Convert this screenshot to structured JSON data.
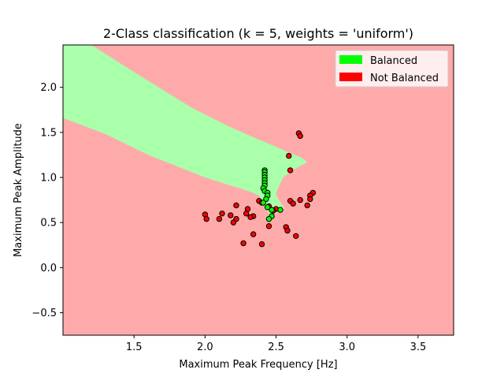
{
  "chart_data": {
    "type": "scatter",
    "title": "2-Class classification (k = 5, weights = 'uniform')",
    "xlabel": "Maximum Peak Frequency [Hz]",
    "ylabel": "Maximum Peak Amplitude",
    "xlim": [
      1.0,
      3.75
    ],
    "ylim": [
      -0.75,
      2.47
    ],
    "xticks": [
      1.5,
      2.0,
      2.5,
      3.0,
      3.5
    ],
    "xtick_labels": [
      "1.5",
      "2.0",
      "2.5",
      "3.0",
      "3.5"
    ],
    "yticks": [
      -0.5,
      0.0,
      0.5,
      1.0,
      1.5,
      2.0
    ],
    "ytick_labels": [
      "−0.5",
      "0.0",
      "0.5",
      "1.0",
      "1.5",
      "2.0"
    ],
    "grid": false,
    "legend_position": "top-right",
    "legend": [
      {
        "label": "Balanced",
        "color": "#00ff00"
      },
      {
        "label": "Not Balanced",
        "color": "#ff0000"
      }
    ],
    "background_regions": {
      "not_balanced_color": "#ffaaaa",
      "balanced_color": "#aaffaa",
      "balanced_polygon": [
        [
          1.0,
          2.47
        ],
        [
          1.2,
          2.47
        ],
        [
          1.5,
          2.17
        ],
        [
          1.9,
          1.78
        ],
        [
          2.15,
          1.58
        ],
        [
          2.35,
          1.44
        ],
        [
          2.5,
          1.34
        ],
        [
          2.6,
          1.27
        ],
        [
          2.68,
          1.22
        ],
        [
          2.72,
          1.17
        ],
        [
          2.66,
          1.12
        ],
        [
          2.6,
          1.06
        ],
        [
          2.55,
          1.0
        ],
        [
          2.52,
          0.9
        ],
        [
          2.5,
          0.82
        ],
        [
          2.52,
          0.75
        ],
        [
          2.56,
          0.66
        ],
        [
          2.5,
          0.6
        ],
        [
          2.45,
          0.6
        ],
        [
          2.42,
          0.7
        ],
        [
          2.38,
          0.8
        ],
        [
          2.32,
          0.84
        ],
        [
          2.2,
          0.9
        ],
        [
          2.0,
          1.0
        ],
        [
          1.6,
          1.25
        ],
        [
          1.3,
          1.48
        ],
        [
          1.0,
          1.66
        ]
      ]
    },
    "series": [
      {
        "name": "Balanced",
        "color": "#00ff00",
        "points": [
          [
            2.42,
            1.08
          ],
          [
            2.42,
            1.06
          ],
          [
            2.42,
            1.03
          ],
          [
            2.42,
            1.0
          ],
          [
            2.42,
            0.97
          ],
          [
            2.42,
            0.94
          ],
          [
            2.42,
            0.91
          ],
          [
            2.41,
            0.88
          ],
          [
            2.42,
            0.85
          ],
          [
            2.44,
            0.83
          ],
          [
            2.44,
            0.8
          ],
          [
            2.43,
            0.76
          ],
          [
            2.41,
            0.72
          ],
          [
            2.44,
            0.67
          ],
          [
            2.47,
            0.64
          ],
          [
            2.53,
            0.64
          ],
          [
            2.47,
            0.57
          ],
          [
            2.45,
            0.54
          ]
        ]
      },
      {
        "name": "Not Balanced",
        "color": "#ff0000",
        "points": [
          [
            2.66,
            1.49
          ],
          [
            2.67,
            1.46
          ],
          [
            2.59,
            1.24
          ],
          [
            2.6,
            1.08
          ],
          [
            2.76,
            0.83
          ],
          [
            2.74,
            0.8
          ],
          [
            2.74,
            0.76
          ],
          [
            2.67,
            0.75
          ],
          [
            2.6,
            0.74
          ],
          [
            2.62,
            0.71
          ],
          [
            2.72,
            0.69
          ],
          [
            2.38,
            0.74
          ],
          [
            2.4,
            0.72
          ],
          [
            2.22,
            0.69
          ],
          [
            2.3,
            0.65
          ],
          [
            2.5,
            0.65
          ],
          [
            2.45,
            0.68
          ],
          [
            2.48,
            0.63
          ],
          [
            2.29,
            0.6
          ],
          [
            2.34,
            0.57
          ],
          [
            2.32,
            0.56
          ],
          [
            2.12,
            0.6
          ],
          [
            2.18,
            0.58
          ],
          [
            2.0,
            0.59
          ],
          [
            2.01,
            0.54
          ],
          [
            2.1,
            0.54
          ],
          [
            2.22,
            0.54
          ],
          [
            2.2,
            0.5
          ],
          [
            2.45,
            0.46
          ],
          [
            2.57,
            0.45
          ],
          [
            2.58,
            0.41
          ],
          [
            2.34,
            0.37
          ],
          [
            2.64,
            0.35
          ],
          [
            2.27,
            0.27
          ],
          [
            2.4,
            0.26
          ]
        ]
      }
    ]
  }
}
